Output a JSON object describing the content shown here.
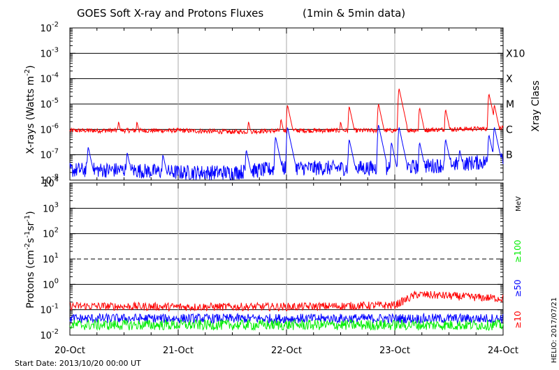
{
  "chart_data": [
    {
      "type": "line",
      "title": "GOES Soft X-ray and Protons Fluxes",
      "subtitle": "(1min & 5min data)",
      "ylabel": "X-rays (Watts m",
      "ylabel_sup": "-2",
      "ylabel_close": ")",
      "yscale": "log",
      "ylim": [
        1e-08,
        0.01
      ],
      "y_ticks": [
        {
          "base": "10",
          "exp": "-8"
        },
        {
          "base": "10",
          "exp": "-7"
        },
        {
          "base": "10",
          "exp": "-6"
        },
        {
          "base": "10",
          "exp": "-5"
        },
        {
          "base": "10",
          "exp": "-4"
        },
        {
          "base": "10",
          "exp": "-3"
        },
        {
          "base": "10",
          "exp": "-2"
        }
      ],
      "xlim": [
        "2013-10-20",
        "2013-10-24"
      ],
      "grid": true,
      "right_axis_label": "Xray Class",
      "classes": [
        {
          "label": "B",
          "flux": 1e-07
        },
        {
          "label": "C",
          "flux": 1e-06
        },
        {
          "label": "M",
          "flux": 1e-05
        },
        {
          "label": "X",
          "flux": 0.0001
        },
        {
          "label": "X10",
          "flux": 0.001
        }
      ],
      "series": [
        {
          "color": "#ff0000",
          "baseline_days": [
            0,
            0.5,
            1,
            1.5,
            2,
            2.5,
            3,
            3.5,
            4
          ],
          "baseline_flux": [
            9e-07,
            9e-07,
            9e-07,
            8e-07,
            9e-07,
            9e-07,
            9e-07,
            1e-06,
            1.1e-06
          ],
          "peaks_days": [
            0.45,
            0.62,
            1.65,
            1.95,
            2.01,
            2.5,
            2.58,
            2.85,
            3.04,
            3.23,
            3.47,
            3.87,
            3.92
          ],
          "peaks_flux": [
            2e-06,
            2e-06,
            2e-06,
            2.5e-06,
            9e-06,
            2e-06,
            8e-06,
            1e-05,
            4e-05,
            7e-06,
            6e-06,
            2.5e-05,
            9e-06
          ]
        },
        {
          "color": "#0000ff",
          "baseline_days": [
            0,
            0.5,
            1,
            1.5,
            2,
            2.5,
            3,
            3.5,
            4
          ],
          "baseline_flux": [
            2.5e-08,
            2.5e-08,
            2e-08,
            2e-08,
            3e-08,
            3e-08,
            3e-08,
            4e-08,
            6e-08
          ],
          "peaks_days": [
            0.17,
            0.53,
            0.86,
            1.63,
            1.9,
            2.01,
            2.58,
            2.85,
            2.97,
            3.04,
            3.23,
            3.47,
            3.6,
            3.87,
            3.92
          ],
          "peaks_flux": [
            2e-07,
            1.2e-07,
            1e-07,
            1.5e-07,
            5e-07,
            1.2e-06,
            4e-07,
            1.5e-06,
            3e-07,
            1.2e-06,
            3e-07,
            4e-07,
            1.5e-07,
            6e-07,
            1.2e-06
          ]
        }
      ]
    },
    {
      "type": "line",
      "ylabel": "Protons (cm",
      "ylabel_sup1": "-2",
      "ylabel_mid1": "s",
      "ylabel_sup2": "-1",
      "ylabel_mid2": "sr",
      "ylabel_sup3": "-1",
      "ylabel_close": ")",
      "yscale": "log",
      "ylim": [
        0.01,
        10000
      ],
      "y_ticks": [
        {
          "base": "10",
          "exp": "-2"
        },
        {
          "base": "10",
          "exp": "-1"
        },
        {
          "base": "10",
          "exp": "0"
        },
        {
          "base": "10",
          "exp": "1"
        },
        {
          "base": "10",
          "exp": "2"
        },
        {
          "base": "10",
          "exp": "3"
        },
        {
          "base": "10",
          "exp": "4"
        }
      ],
      "dashed_level": 10,
      "x_categories": [
        "20-Oct",
        "21-Oct",
        "22-Oct",
        "23-Oct",
        "24-Oct"
      ],
      "grid": true,
      "right_units": "MeV",
      "series": [
        {
          "name": "≥10",
          "color": "#ff0000",
          "days": [
            0,
            1,
            2,
            3.0,
            3.2,
            3.5,
            3.8,
            4
          ],
          "flux": [
            0.14,
            0.13,
            0.13,
            0.15,
            0.4,
            0.35,
            0.3,
            0.28
          ]
        },
        {
          "name": "≥50",
          "color": "#0000ff",
          "days": [
            0,
            4
          ],
          "flux": [
            0.045,
            0.045
          ]
        },
        {
          "name": "≥100",
          "color": "#00ee00",
          "days": [
            0,
            4
          ],
          "flux": [
            0.025,
            0.025
          ]
        }
      ]
    }
  ],
  "footer": {
    "start_date": "Start Date: 2013/10/20 00:00 UT",
    "credit": "HELIO: 2017/07/21"
  }
}
